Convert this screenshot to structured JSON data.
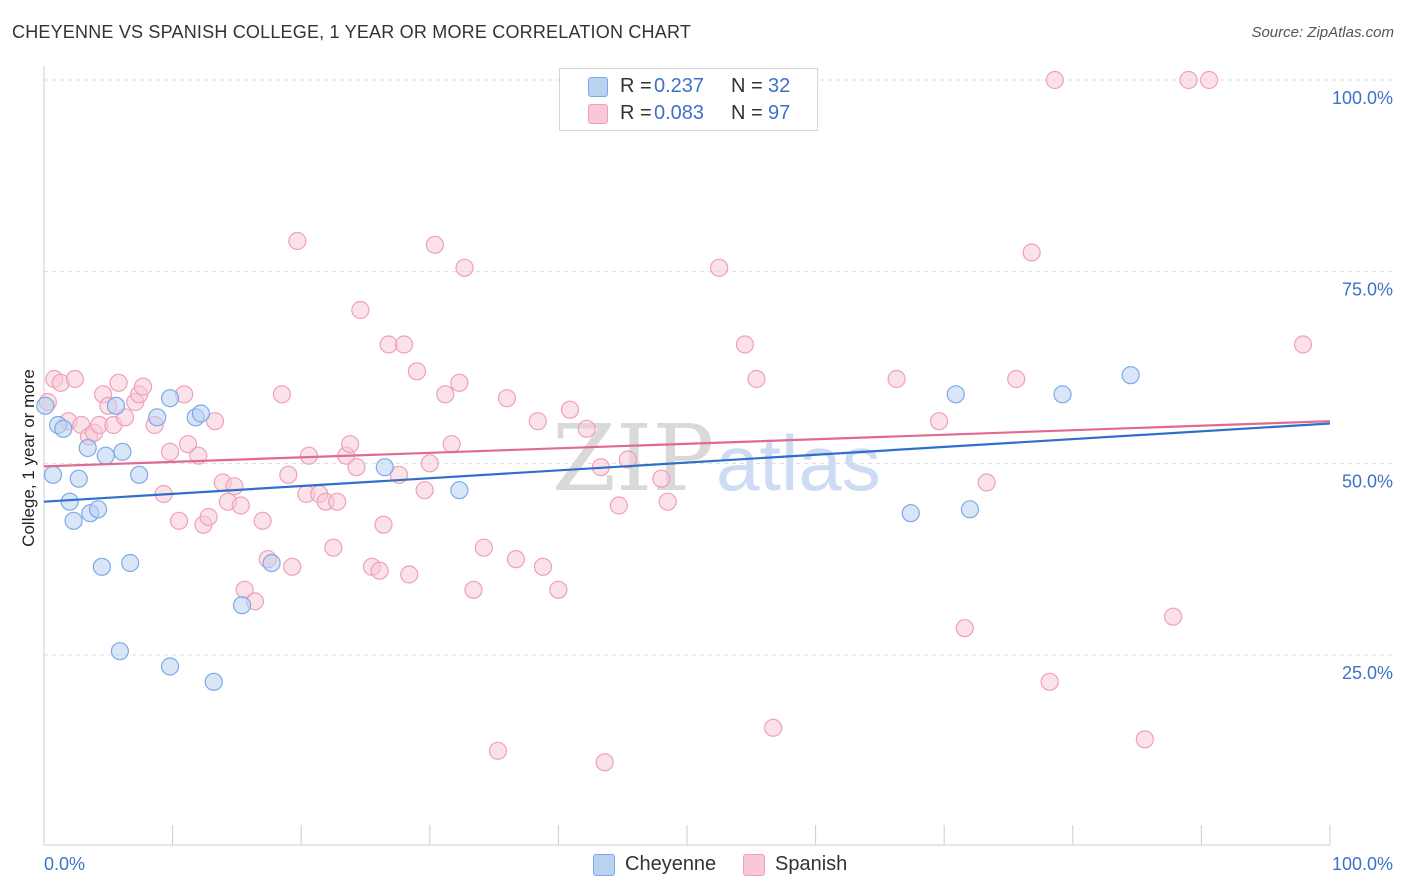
{
  "title": "CHEYENNE VS SPANISH COLLEGE, 1 YEAR OR MORE CORRELATION CHART",
  "source": "Source: ZipAtlas.com",
  "watermark": {
    "zip": "ZIP",
    "atlas": "atlas"
  },
  "legend": {
    "r_label": "R =",
    "n_label": "N =",
    "rows": [
      {
        "r": "0.237",
        "n": "32"
      },
      {
        "r": "0.083",
        "n": "97"
      }
    ]
  },
  "chart_data": {
    "type": "scatter",
    "title": "CHEYENNE VS SPANISH COLLEGE, 1 YEAR OR MORE CORRELATION CHART",
    "xlabel": "",
    "ylabel": "College, 1 year or more",
    "xlim": [
      0,
      100
    ],
    "ylim": [
      0,
      105
    ],
    "x_tick_labels": [
      "0.0%",
      "100.0%"
    ],
    "y_ticks": [
      25,
      50,
      75,
      100
    ],
    "y_tick_labels": [
      "25.0%",
      "50.0%",
      "75.0%",
      "100.0%"
    ],
    "grid": "horizontal dashed",
    "legend_position": "top-center",
    "series": [
      {
        "name": "Cheyenne",
        "color": "#7aaae8",
        "fill": "#b9d2f2",
        "line_color": "#2f6fcc",
        "trend": {
          "x": [
            0,
            100
          ],
          "y": [
            45,
            55.2
          ]
        },
        "points": [
          [
            0.1,
            57.5
          ],
          [
            0.7,
            48.5
          ],
          [
            1.1,
            55
          ],
          [
            1.5,
            54.5
          ],
          [
            2.0,
            45
          ],
          [
            2.3,
            42.5
          ],
          [
            2.7,
            48
          ],
          [
            3.4,
            52
          ],
          [
            3.6,
            43.5
          ],
          [
            4.2,
            44
          ],
          [
            4.5,
            36.5
          ],
          [
            4.8,
            51
          ],
          [
            5.6,
            57.5
          ],
          [
            5.9,
            25.5
          ],
          [
            6.1,
            51.5
          ],
          [
            6.7,
            37
          ],
          [
            7.4,
            48.5
          ],
          [
            9.8,
            23.5
          ],
          [
            8.8,
            56
          ],
          [
            9.8,
            58.5
          ],
          [
            11.8,
            56
          ],
          [
            12.2,
            56.5
          ],
          [
            13.2,
            21.5
          ],
          [
            15.4,
            31.5
          ],
          [
            17.7,
            37
          ],
          [
            26.5,
            49.5
          ],
          [
            32.3,
            46.5
          ],
          [
            67.4,
            43.5
          ],
          [
            70.9,
            59
          ],
          [
            72.0,
            44
          ],
          [
            79.2,
            59
          ],
          [
            84.5,
            61.5
          ]
        ]
      },
      {
        "name": "Spanish",
        "color": "#f0a0b8",
        "fill": "#f8c8d6",
        "line_color": "#e06a90",
        "trend": {
          "x": [
            0,
            100
          ],
          "y": [
            49.6,
            55.5
          ]
        },
        "points": [
          [
            0.3,
            58
          ],
          [
            0.8,
            61
          ],
          [
            1.3,
            60.5
          ],
          [
            1.9,
            55.5
          ],
          [
            2.4,
            61
          ],
          [
            2.9,
            55
          ],
          [
            3.5,
            53.5
          ],
          [
            3.9,
            54
          ],
          [
            4.3,
            55
          ],
          [
            4.6,
            59
          ],
          [
            5.0,
            57.5
          ],
          [
            5.4,
            55
          ],
          [
            5.8,
            60.5
          ],
          [
            6.3,
            56
          ],
          [
            7.1,
            58
          ],
          [
            7.4,
            59
          ],
          [
            7.7,
            60
          ],
          [
            8.6,
            55
          ],
          [
            9.3,
            46
          ],
          [
            9.8,
            51.5
          ],
          [
            10.5,
            42.5
          ],
          [
            10.9,
            59
          ],
          [
            11.2,
            52.5
          ],
          [
            12.0,
            51
          ],
          [
            12.4,
            42
          ],
          [
            12.8,
            43
          ],
          [
            13.3,
            55.5
          ],
          [
            13.9,
            47.5
          ],
          [
            14.3,
            45
          ],
          [
            14.8,
            47
          ],
          [
            15.3,
            44.5
          ],
          [
            15.6,
            33.5
          ],
          [
            16.4,
            32
          ],
          [
            17.0,
            42.5
          ],
          [
            17.4,
            37.5
          ],
          [
            18.5,
            59
          ],
          [
            19.0,
            48.5
          ],
          [
            19.3,
            36.5
          ],
          [
            19.7,
            79
          ],
          [
            20.4,
            46
          ],
          [
            20.6,
            51
          ],
          [
            21.4,
            46
          ],
          [
            21.9,
            45
          ],
          [
            22.5,
            39
          ],
          [
            22.8,
            45
          ],
          [
            23.5,
            51
          ],
          [
            23.8,
            52.5
          ],
          [
            24.3,
            49.5
          ],
          [
            24.6,
            70
          ],
          [
            25.5,
            36.5
          ],
          [
            26.1,
            36
          ],
          [
            26.4,
            42
          ],
          [
            26.8,
            65.5
          ],
          [
            27.6,
            48.5
          ],
          [
            28.0,
            65.5
          ],
          [
            28.4,
            35.5
          ],
          [
            29.0,
            62
          ],
          [
            29.6,
            46.5
          ],
          [
            30.0,
            50
          ],
          [
            30.4,
            78.5
          ],
          [
            31.2,
            59
          ],
          [
            31.7,
            52.5
          ],
          [
            32.3,
            60.5
          ],
          [
            32.7,
            75.5
          ],
          [
            33.4,
            33.5
          ],
          [
            34.2,
            39
          ],
          [
            35.3,
            12.5
          ],
          [
            36.0,
            58.5
          ],
          [
            36.7,
            37.5
          ],
          [
            38.4,
            55.5
          ],
          [
            38.8,
            36.5
          ],
          [
            40.0,
            33.5
          ],
          [
            40.9,
            57
          ],
          [
            42.2,
            54.5
          ],
          [
            43.3,
            49.5
          ],
          [
            43.6,
            11
          ],
          [
            44.7,
            44.5
          ],
          [
            45.4,
            50.5
          ],
          [
            48.0,
            48
          ],
          [
            48.5,
            45
          ],
          [
            52.5,
            75.5
          ],
          [
            54.5,
            65.5
          ],
          [
            55.4,
            61
          ],
          [
            56.7,
            15.5
          ],
          [
            66.3,
            61
          ],
          [
            69.6,
            55.5
          ],
          [
            71.6,
            28.5
          ],
          [
            73.3,
            47.5
          ],
          [
            75.6,
            61
          ],
          [
            76.8,
            77.5
          ],
          [
            78.2,
            21.5
          ],
          [
            78.6,
            100
          ],
          [
            85.6,
            14
          ],
          [
            87.8,
            30
          ],
          [
            89.0,
            100
          ],
          [
            90.6,
            100
          ],
          [
            97.9,
            65.5
          ]
        ]
      }
    ]
  }
}
